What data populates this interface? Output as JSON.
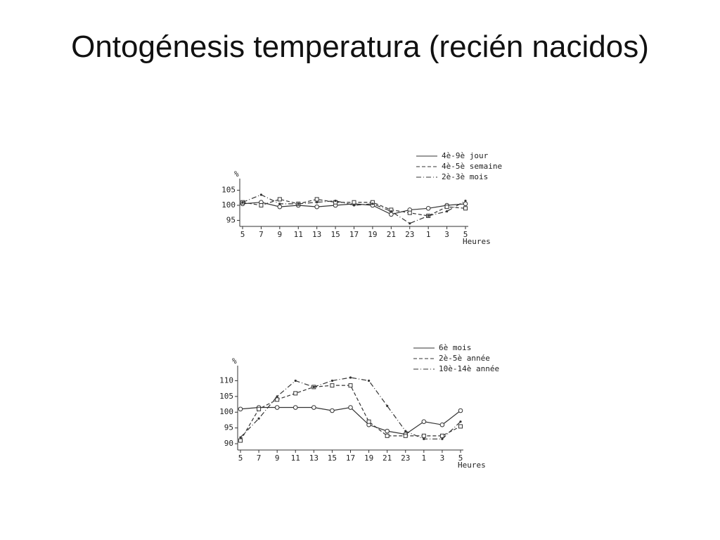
{
  "title": "Ontogénesis temperatura (recién nacidos)",
  "chart_data": [
    {
      "type": "line",
      "x_label": "Heures",
      "y_label": "%",
      "categories": [
        "5",
        "7",
        "9",
        "11",
        "13",
        "15",
        "17",
        "19",
        "21",
        "23",
        "1",
        "3",
        "5"
      ],
      "ylim": [
        93,
        107
      ],
      "yticks": [
        95,
        100,
        105
      ],
      "series": [
        {
          "name": "4è-9è jour",
          "color": "#333333",
          "dash": "solid",
          "marker": "circle",
          "values": [
            100.5,
            101,
            99.5,
            100,
            99.5,
            100,
            100.5,
            100,
            97,
            98.5,
            99,
            100,
            100.5
          ]
        },
        {
          "name": "4è-5è semaine",
          "color": "#333333",
          "dash": "dashed",
          "marker": "square",
          "values": [
            101,
            100,
            102,
            100.5,
            102,
            101,
            101,
            101,
            98.5,
            97.5,
            96.5,
            99.5,
            99
          ]
        },
        {
          "name": "2è-3è mois",
          "color": "#333333",
          "dash": "dashdot",
          "marker": "dot",
          "values": [
            101,
            103.5,
            100.5,
            100.5,
            101,
            101.5,
            100,
            100.5,
            98,
            94,
            96.5,
            98,
            101.5
          ]
        }
      ]
    },
    {
      "type": "line",
      "x_label": "Heures",
      "y_label": "%",
      "categories": [
        "5",
        "7",
        "9",
        "11",
        "13",
        "15",
        "17",
        "19",
        "21",
        "23",
        "1",
        "3",
        "5"
      ],
      "ylim": [
        88,
        113
      ],
      "yticks": [
        90,
        95,
        100,
        105,
        110
      ],
      "series": [
        {
          "name": "6è mois",
          "color": "#333333",
          "dash": "solid",
          "marker": "circle",
          "values": [
            101,
            101.5,
            101.5,
            101.5,
            101.5,
            100.5,
            101.5,
            96,
            94,
            93,
            97,
            96,
            100.5
          ]
        },
        {
          "name": "2è-5è année",
          "color": "#333333",
          "dash": "dashed",
          "marker": "square",
          "values": [
            91,
            101,
            104,
            106,
            108,
            108.5,
            108.5,
            97,
            92.5,
            92.5,
            92.5,
            92.5,
            95.5
          ]
        },
        {
          "name": "10è-14è année",
          "color": "#333333",
          "dash": "dashdot",
          "marker": "dot",
          "values": [
            92,
            98,
            105,
            110,
            108,
            110,
            111,
            110,
            102,
            94,
            91.5,
            91.5,
            97
          ]
        }
      ]
    }
  ]
}
